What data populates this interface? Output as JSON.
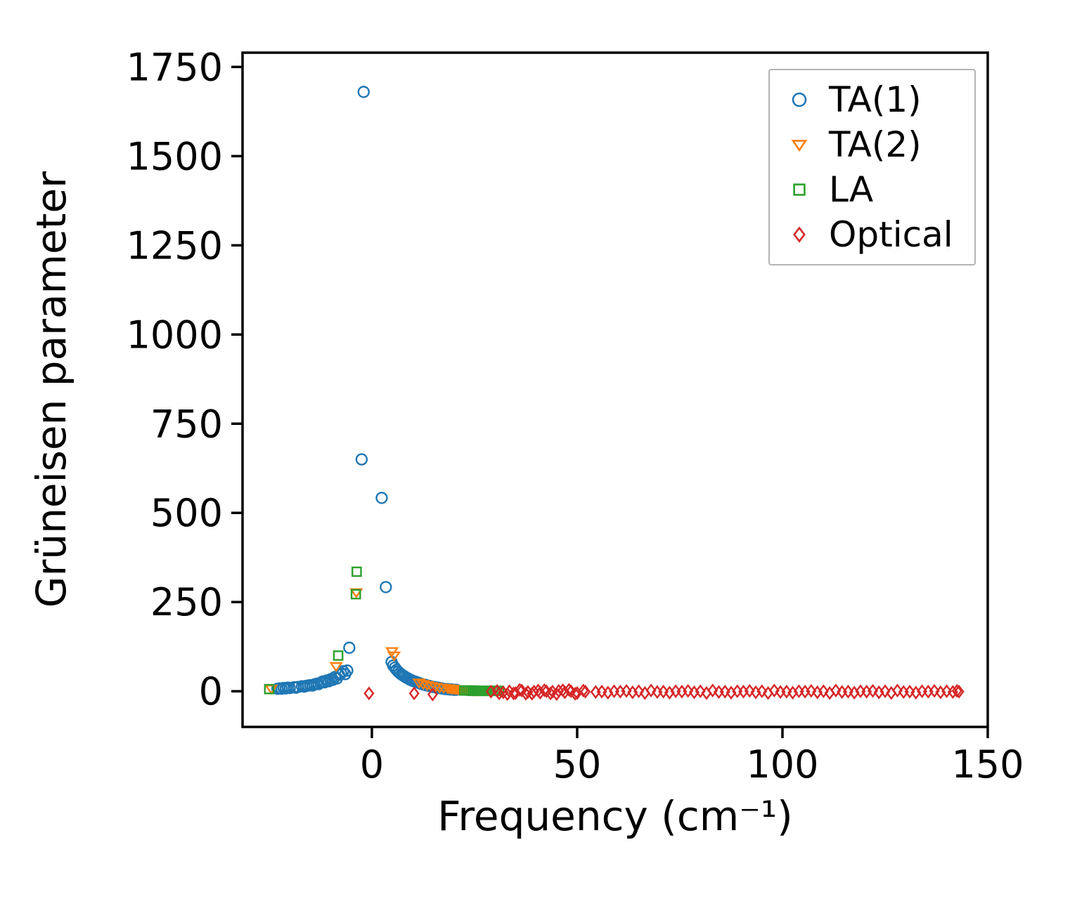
{
  "chart_data": {
    "type": "scatter",
    "title": "",
    "xlabel": "Frequency (cm⁻¹)",
    "ylabel": "Grüneisen parameter",
    "xlim": [
      -31.5,
      150
    ],
    "ylim": [
      -100,
      1790
    ],
    "xticks": [
      0,
      50,
      100,
      150
    ],
    "yticks": [
      0,
      250,
      500,
      750,
      1000,
      1250,
      1500,
      1750
    ],
    "grid": false,
    "legend_position": "upper right",
    "series": [
      {
        "name": "TA(1)",
        "marker": "circle",
        "color": "#1f77b4",
        "points": [
          [
            -23,
            7
          ],
          [
            -22.5,
            8
          ],
          [
            -22,
            7
          ],
          [
            -21.5,
            9
          ],
          [
            -21,
            8
          ],
          [
            -20.5,
            10
          ],
          [
            -20,
            9
          ],
          [
            -19,
            11
          ],
          [
            -18.5,
            10
          ],
          [
            -18,
            12
          ],
          [
            -17,
            14
          ],
          [
            -16.5,
            13
          ],
          [
            -16,
            15
          ],
          [
            -15.5,
            16
          ],
          [
            -15,
            17
          ],
          [
            -14.5,
            16
          ],
          [
            -14,
            19
          ],
          [
            -13.5,
            21
          ],
          [
            -13,
            20
          ],
          [
            -12.5,
            24
          ],
          [
            -12,
            27
          ],
          [
            -11.5,
            25
          ],
          [
            -11,
            30
          ],
          [
            -10.5,
            28
          ],
          [
            -10,
            34
          ],
          [
            -9.5,
            32
          ],
          [
            -9,
            40
          ],
          [
            -8.5,
            36
          ],
          [
            -8,
            46
          ],
          [
            -7.5,
            50
          ],
          [
            -7,
            56
          ],
          [
            -6.5,
            48
          ],
          [
            -6,
            58
          ],
          [
            -5.5,
            122
          ],
          [
            -2.5,
            650
          ],
          [
            -2,
            1680
          ],
          [
            2.4,
            542
          ],
          [
            3.4,
            292
          ],
          [
            4.8,
            82
          ],
          [
            5.2,
            72
          ],
          [
            5.6,
            66
          ],
          [
            6,
            60
          ],
          [
            6.4,
            55
          ],
          [
            6.8,
            51
          ],
          [
            7.2,
            47
          ],
          [
            7.6,
            44
          ],
          [
            8,
            41
          ],
          [
            8.4,
            38
          ],
          [
            8.8,
            36
          ],
          [
            9.2,
            33
          ],
          [
            9.6,
            31
          ],
          [
            10,
            29
          ],
          [
            10.5,
            27
          ],
          [
            11,
            25
          ],
          [
            11.5,
            23
          ],
          [
            12,
            21
          ],
          [
            12.5,
            19
          ],
          [
            13,
            18
          ],
          [
            13.5,
            16
          ],
          [
            14,
            15
          ],
          [
            14.5,
            13
          ],
          [
            15,
            12
          ],
          [
            15.5,
            11
          ],
          [
            16,
            10
          ],
          [
            16.5,
            9
          ],
          [
            17,
            8
          ],
          [
            17.5,
            7
          ],
          [
            18,
            6
          ],
          [
            18.5,
            6
          ],
          [
            19,
            5
          ],
          [
            19.5,
            5
          ],
          [
            20,
            4
          ],
          [
            20.5,
            4
          ]
        ]
      },
      {
        "name": "TA(2)",
        "marker": "triangle-down",
        "color": "#ff7f0e",
        "points": [
          [
            -24.5,
            7
          ],
          [
            -8.7,
            70
          ],
          [
            -3.8,
            277
          ],
          [
            4.9,
            112
          ],
          [
            5.4,
            100
          ],
          [
            11.5,
            24
          ],
          [
            12.5,
            20
          ],
          [
            13.5,
            17
          ],
          [
            14.5,
            14
          ],
          [
            15.5,
            12
          ],
          [
            16.5,
            10
          ],
          [
            17.5,
            9
          ],
          [
            18.5,
            8
          ],
          [
            19,
            7
          ],
          [
            19.5,
            6
          ],
          [
            20,
            6
          ],
          [
            20.5,
            5
          ],
          [
            21,
            5
          ],
          [
            21.5,
            4
          ],
          [
            22,
            4
          ],
          [
            22.5,
            4
          ],
          [
            23,
            3
          ],
          [
            23.5,
            3
          ],
          [
            24,
            3
          ],
          [
            24.5,
            2
          ],
          [
            25,
            2
          ],
          [
            25.5,
            2
          ],
          [
            26,
            2
          ]
        ]
      },
      {
        "name": "LA",
        "marker": "square",
        "color": "#2ca02c",
        "points": [
          [
            -25,
            6
          ],
          [
            -8.2,
            100
          ],
          [
            -3.7,
            335
          ],
          [
            -3.9,
            272
          ],
          [
            22.5,
            2
          ],
          [
            23,
            2
          ],
          [
            23.5,
            2
          ],
          [
            24,
            2
          ],
          [
            24.5,
            1
          ],
          [
            25,
            2
          ],
          [
            25.5,
            1
          ],
          [
            26,
            1
          ],
          [
            26.5,
            1
          ],
          [
            27,
            1
          ],
          [
            27.5,
            1
          ],
          [
            28,
            1
          ],
          [
            28.5,
            1
          ],
          [
            29,
            1
          ],
          [
            29.5,
            1
          ],
          [
            30,
            1
          ],
          [
            30.5,
            1
          ],
          [
            31,
            1
          ]
        ]
      },
      {
        "name": "Optical",
        "marker": "diamond",
        "color": "#d62728",
        "points": [
          [
            -0.7,
            -6
          ],
          [
            10.3,
            -6
          ],
          [
            14.8,
            -9
          ],
          [
            29,
            -1
          ],
          [
            30.5,
            1
          ],
          [
            31,
            -6
          ],
          [
            32,
            -3
          ],
          [
            33,
            -8
          ],
          [
            33.5,
            0
          ],
          [
            34.5,
            -6
          ],
          [
            35,
            -5
          ],
          [
            36,
            4
          ],
          [
            36.5,
            2
          ],
          [
            37.5,
            -7
          ],
          [
            38,
            -2
          ],
          [
            39,
            -7
          ],
          [
            39.5,
            -1
          ],
          [
            40.5,
            2
          ],
          [
            41,
            -4
          ],
          [
            42,
            3
          ],
          [
            42.5,
            0
          ],
          [
            43.5,
            -6
          ],
          [
            44,
            -1
          ],
          [
            45,
            -8
          ],
          [
            45.5,
            1
          ],
          [
            46.5,
            3
          ],
          [
            47,
            -3
          ],
          [
            48,
            4
          ],
          [
            48.5,
            0
          ],
          [
            49.5,
            -7
          ],
          [
            50,
            -5
          ],
          [
            51.5,
            2
          ],
          [
            52,
            -1
          ],
          [
            54.5,
            -2
          ],
          [
            56,
            -1
          ],
          [
            57.5,
            -4
          ],
          [
            59,
            0
          ],
          [
            60.5,
            -1
          ],
          [
            62,
            1
          ],
          [
            63.5,
            -3
          ],
          [
            65,
            0
          ],
          [
            66.5,
            -5
          ],
          [
            68,
            2
          ],
          [
            69.5,
            -2
          ],
          [
            71,
            -1
          ],
          [
            72.5,
            -4
          ],
          [
            74,
            0
          ],
          [
            75.5,
            -1
          ],
          [
            77,
            1
          ],
          [
            78.5,
            -3
          ],
          [
            80,
            0
          ],
          [
            81.5,
            -5
          ],
          [
            83,
            2
          ],
          [
            84.5,
            -2
          ],
          [
            86,
            -1
          ],
          [
            87.5,
            -4
          ],
          [
            89,
            0
          ],
          [
            90.5,
            -1
          ],
          [
            92,
            1
          ],
          [
            93.5,
            -3
          ],
          [
            95,
            0
          ],
          [
            96.5,
            -5
          ],
          [
            98,
            2
          ],
          [
            99.5,
            -2
          ],
          [
            101,
            -1
          ],
          [
            102.5,
            -4
          ],
          [
            104,
            0
          ],
          [
            105.5,
            -1
          ],
          [
            107,
            1
          ],
          [
            108.5,
            -3
          ],
          [
            110,
            0
          ],
          [
            111.5,
            -5
          ],
          [
            113,
            2
          ],
          [
            114.5,
            -2
          ],
          [
            116,
            -1
          ],
          [
            117.5,
            -4
          ],
          [
            119,
            0
          ],
          [
            120.5,
            -1
          ],
          [
            122,
            1
          ],
          [
            123.5,
            -3
          ],
          [
            125,
            0
          ],
          [
            126.5,
            -5
          ],
          [
            128,
            2
          ],
          [
            129.5,
            -2
          ],
          [
            131,
            -1
          ],
          [
            132.5,
            -4
          ],
          [
            134,
            0
          ],
          [
            135.5,
            -1
          ],
          [
            137,
            1
          ],
          [
            138.5,
            -3
          ],
          [
            140,
            0
          ],
          [
            141.5,
            -2
          ],
          [
            142.5,
            1
          ],
          [
            143,
            -1
          ]
        ]
      }
    ]
  }
}
